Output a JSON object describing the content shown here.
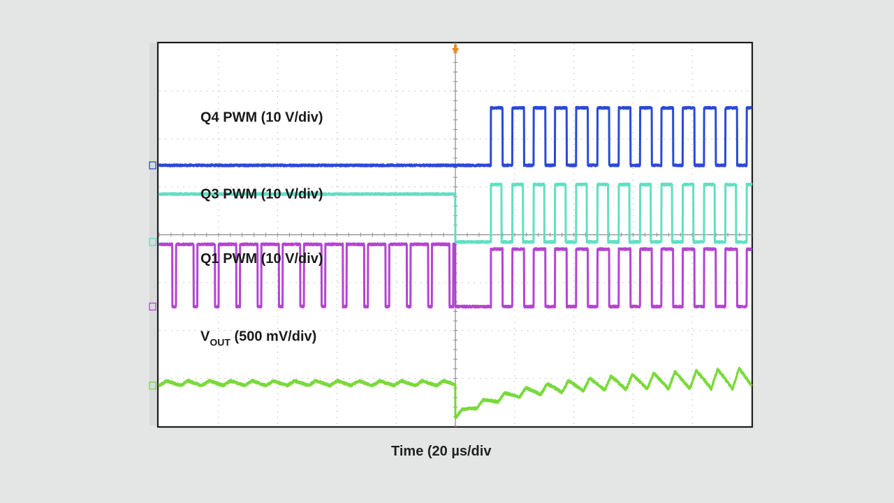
{
  "chart_data": {
    "type": "line",
    "title": "",
    "xlabel": "Time (20 µs/div",
    "ylabel": "",
    "grid": true,
    "divisions": {
      "x": 10,
      "y": 8
    },
    "x_unit": "µs",
    "x_range": [
      -100,
      100
    ],
    "trigger_time": 0,
    "series": [
      {
        "name": "Q4 PWM (10 V/div)",
        "label_main": "Q4 PWM (10 V/div)",
        "label_sub": "",
        "label_tail": "",
        "color": "#1f3fd6",
        "channel": "1",
        "behavior": "low (0 V) before t=0; square-wave switching starts at ≈12 µs after trigger",
        "level_low_div": 0,
        "level_high_div": 1.2,
        "baseline_div": 5.45,
        "segments": [
          {
            "t_start": -100,
            "t_end": 12,
            "shape": "flat",
            "level_div": 0
          },
          {
            "t_start": 12,
            "t_end": 100,
            "shape": "square",
            "period_us": 7.2,
            "duty": 0.55,
            "low_div": 0,
            "high_div": 1.2
          }
        ],
        "noise": 0.02,
        "edge_round": true
      },
      {
        "name": "Q3 PWM (10 V/div)",
        "label_main": "Q3 PWM (10 V/div)",
        "label_sub": "",
        "label_tail": "",
        "color": "#58ddc0",
        "channel": "2",
        "behavior": "held high before t=0; drops low at t=0 then square-wave switching from ≈12 µs",
        "baseline_div": 3.85,
        "segments": [
          {
            "t_start": -100,
            "t_end": 0,
            "shape": "flat",
            "level_div": 1.0
          },
          {
            "t_start": 0,
            "t_end": 12,
            "shape": "flat",
            "level_div": 0
          },
          {
            "t_start": 12,
            "t_end": 100,
            "shape": "square",
            "period_us": 7.2,
            "duty": 0.5,
            "low_div": 0,
            "high_div": 1.2
          }
        ],
        "noise": 0.02,
        "edge_round": true
      },
      {
        "name": "Q1 PWM (10 V/div)",
        "label_main": "Q1 PWM (10 V/div)",
        "label_sub": "",
        "label_tail": "",
        "color": "#b03ad0",
        "channel": "3",
        "behavior": "mostly-high PWM with short low pulses before t=0; low from 0 to ≈12 µs; then square wave",
        "baseline_div": 2.5,
        "segments": [
          {
            "t_start": -100,
            "t_end": 0,
            "shape": "square",
            "period_us": 7.2,
            "duty": 0.82,
            "low_div": 0,
            "high_div": 1.3,
            "phase_us": 1.5
          },
          {
            "t_start": 0,
            "t_end": 12,
            "shape": "flat",
            "level_div": 0
          },
          {
            "t_start": 12,
            "t_end": 100,
            "shape": "square",
            "period_us": 7.2,
            "duty": 0.55,
            "low_div": 0,
            "high_div": 1.2
          }
        ],
        "noise": 0.02,
        "edge_round": true
      },
      {
        "name": "VOUT (500 mV/div)",
        "label_main": "V",
        "label_sub": "OUT",
        "label_tail": " (500 mV/div)",
        "color": "#72d830",
        "channel": "4",
        "behavior": "small sawtooth ripple before t=0; brief dip after t=0, then larger ripple",
        "baseline_div": 0.85,
        "segments": [
          {
            "t_start": -100,
            "t_end": 0,
            "shape": "ripple",
            "period_us": 7.2,
            "amp_div": 0.1,
            "offset_div": 0
          },
          {
            "t_start": 0,
            "t_end": 100,
            "shape": "ripple_recovery",
            "period_us": 7.2,
            "amp_start_div": 0.1,
            "amp_end_div": 0.45,
            "dip_div": -0.22,
            "recovery_us": 20
          }
        ],
        "noise": 0.025
      }
    ]
  }
}
